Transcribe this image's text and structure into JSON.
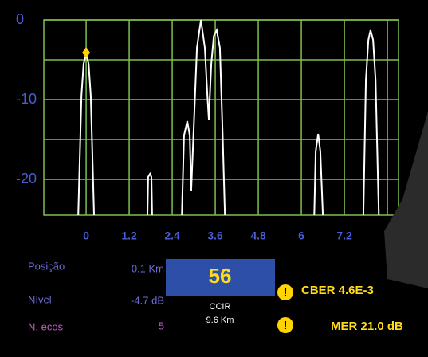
{
  "chart_data": {
    "type": "line",
    "ylim": [
      -24.5,
      0
    ],
    "yticks": [
      0,
      -10,
      -20
    ],
    "ygrid": [
      0,
      -5,
      -10,
      -15,
      -20
    ],
    "xlim": [
      -1.18,
      8.71
    ],
    "xticks": [
      0,
      1.2,
      2.4,
      3.6,
      4.8,
      6,
      7.2
    ],
    "xgrid": [
      0,
      1.2,
      2.4,
      3.6,
      4.8,
      6,
      7.2,
      8.4
    ],
    "grid": true,
    "grid_color": "#7cc04a",
    "tick_color": "#4a5cd6",
    "marker": {
      "x": 0,
      "y": -4.1,
      "color": "#ffd400"
    },
    "series": [
      {
        "color": "#ffffff",
        "x": [
          -0.22,
          -0.13,
          -0.07,
          0,
          0.07,
          0.13,
          0.22,
          null,
          1.71,
          1.73,
          1.78,
          1.82,
          1.84,
          null,
          2.67,
          2.73,
          2.82,
          2.89,
          2.93,
          3.0,
          3.09,
          3.2,
          3.31,
          3.38,
          3.42,
          3.49,
          3.56,
          3.64,
          3.73,
          3.8,
          3.87,
          null,
          6.36,
          6.4,
          6.47,
          6.53,
          6.6,
          null,
          7.73,
          7.8,
          7.87,
          7.93,
          8.0,
          8.07,
          8.16
        ],
        "values": [
          -24.5,
          -9.5,
          -5.5,
          -4.3,
          -5.5,
          -9.5,
          -24.5,
          null,
          -24.5,
          -19.7,
          -19.3,
          -19.7,
          -24.5,
          null,
          -24.5,
          -14.5,
          -12.7,
          -14.5,
          -21.5,
          -13.5,
          -3.5,
          0,
          -3.5,
          -9.5,
          -12.5,
          -5.5,
          -2,
          -1.3,
          -3.5,
          -13.5,
          -24.5,
          null,
          -24.5,
          -16.5,
          -14.3,
          -16.5,
          -24.5,
          null,
          -24.5,
          -7.5,
          -2.5,
          -1.3,
          -2.5,
          -7.5,
          -24.5
        ]
      }
    ]
  },
  "readouts": {
    "position": {
      "label": "Posição",
      "value": "0.1 Km"
    },
    "level": {
      "label": "Nível",
      "value": "-4.7 dB"
    },
    "echoes": {
      "label": "N. ecos",
      "value": "5"
    },
    "channel": {
      "number": "56",
      "standard": "CCIR",
      "distance": "9.6 Km"
    },
    "cber": "CBER 4.6E-3",
    "mer": "MER 21.0 dB"
  }
}
